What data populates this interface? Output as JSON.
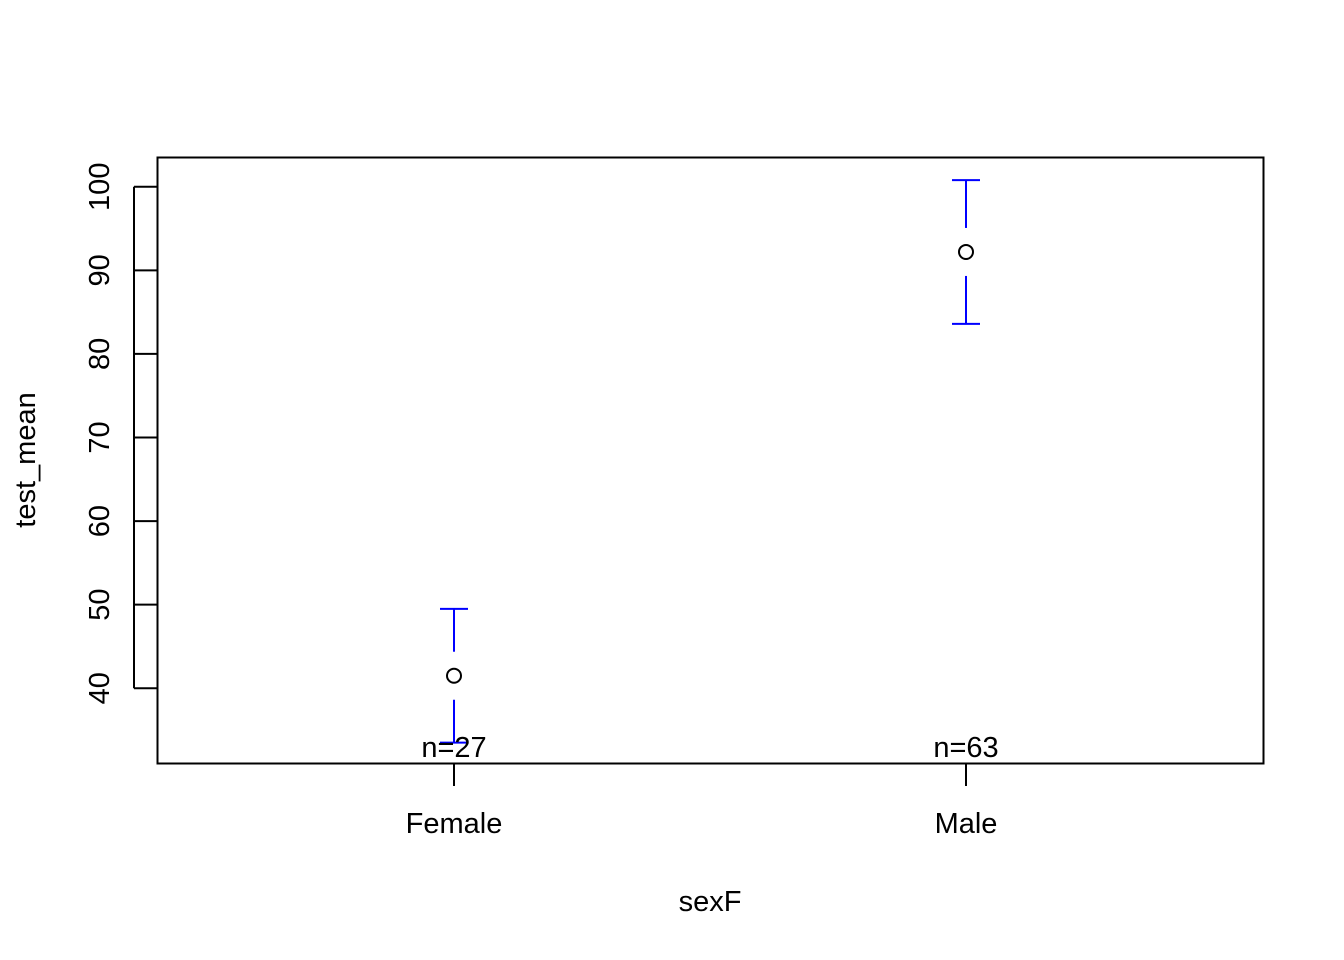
{
  "chart_data": {
    "type": "scatter",
    "title": "",
    "xlabel": "sexF",
    "ylabel": "test_mean",
    "categories": [
      "Female",
      "Male"
    ],
    "means": [
      41.5,
      92.2
    ],
    "ci_upper": [
      49.5,
      100.8
    ],
    "ci_lower": [
      33.5,
      83.6
    ],
    "n_labels": [
      "n=27",
      "n=63"
    ],
    "yticks": [
      40,
      50,
      60,
      70,
      80,
      90,
      100
    ],
    "ylim": [
      31,
      103.5
    ],
    "grid": false,
    "legend": "none",
    "errorbar_color": "#0000FF",
    "point_color": "#000000"
  }
}
